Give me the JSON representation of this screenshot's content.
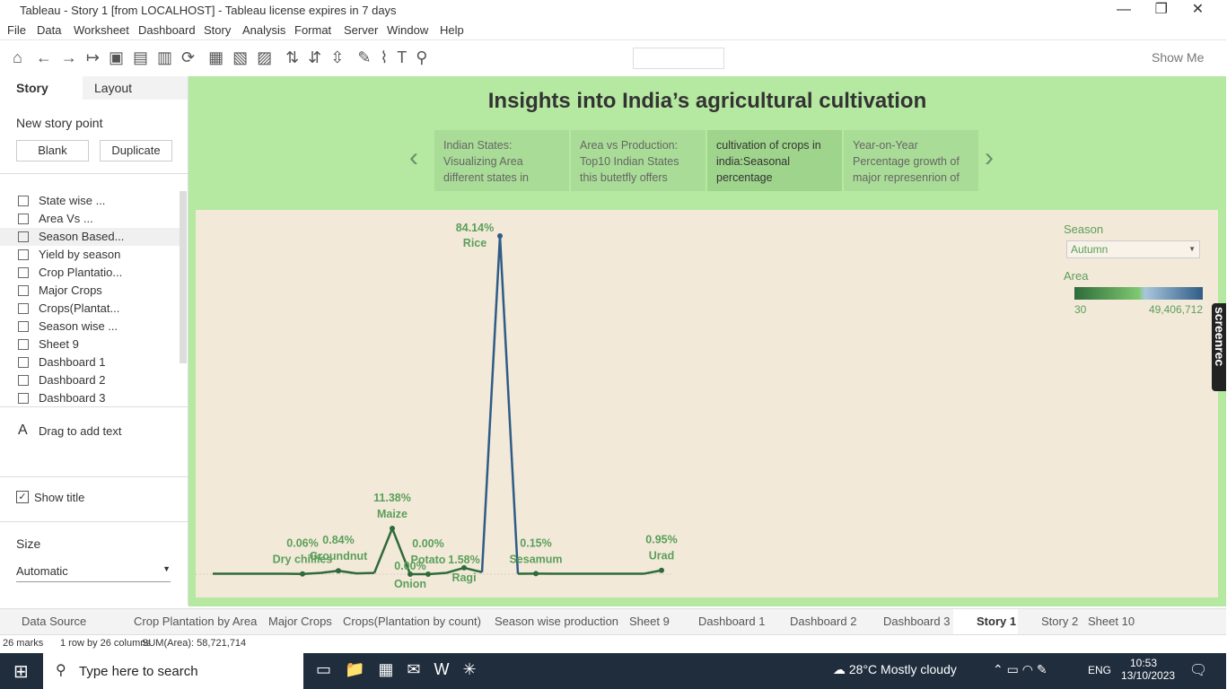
{
  "window": {
    "title": "Tableau - Story 1 [from LOCALHOST] - Tableau license expires in 7 days"
  },
  "menu": [
    "File",
    "Data",
    "Worksheet",
    "Dashboard",
    "Story",
    "Analysis",
    "Format",
    "Server",
    "Window",
    "Help"
  ],
  "toolbar": {
    "show_me": "Show Me"
  },
  "sidebar": {
    "tabs": [
      "Story",
      "Layout"
    ],
    "new_story_point": "New story point",
    "buttons": [
      "Blank",
      "Duplicate"
    ],
    "sheets": [
      "State wise ...",
      "Area Vs ...",
      "Season Based...",
      "Yield by season",
      "Crop Plantatio...",
      "Major Crops",
      "Crops(Plantat...",
      "Season wise ...",
      "Sheet 9",
      "Dashboard 1",
      "Dashboard 2",
      "Dashboard 3"
    ],
    "drag_text": "Drag to add text",
    "show_title": "Show title",
    "size_label": "Size",
    "size_value": "Automatic"
  },
  "story": {
    "title": "Insights into India’s agricultural cultivation",
    "points": [
      [
        "Indian States:",
        "Visualizing Area",
        "different states in"
      ],
      [
        "Area vs Production:",
        "Top10 Indian States",
        "this butetfly offers"
      ],
      [
        "cultivation of crops in",
        "india:Seasonal",
        "percentage"
      ],
      [
        "Year-on-Year",
        "Percentage  growth of",
        "major represenrion of"
      ]
    ]
  },
  "chart_data": {
    "type": "line",
    "categories": [
      null,
      null,
      null,
      null,
      null,
      "Dry chillies",
      null,
      "Groundnut",
      null,
      null,
      "Maize",
      "Onion",
      "Potato",
      null,
      "Ragi",
      null,
      "Rice",
      null,
      "Sesamum",
      null,
      null,
      null,
      null,
      null,
      null,
      "Urad"
    ],
    "values": [
      0.1,
      0.1,
      0.1,
      0.1,
      0.1,
      0.06,
      0.3,
      0.84,
      0.2,
      0.3,
      11.38,
      0.0,
      0.0,
      0.3,
      1.58,
      0.5,
      84.14,
      0.1,
      0.15,
      0.1,
      0.1,
      0.1,
      0.1,
      0.1,
      0.1,
      0.95
    ],
    "value_labels": [
      null,
      null,
      null,
      null,
      null,
      "0.06%",
      null,
      "0.84%",
      null,
      null,
      "11.38%",
      "0.00%",
      "0.00%",
      null,
      "1.58%",
      null,
      "84.14%",
      null,
      "0.15%",
      null,
      null,
      null,
      null,
      null,
      null,
      "0.95%"
    ],
    "color": "#2e6b3a",
    "highlight_color": "#2f5c86",
    "label_color": "#5a9f5a"
  },
  "legend": {
    "season_label": "Season",
    "season_value": "Autumn",
    "area_label": "Area",
    "area_min": "30",
    "area_max": "49,406,712"
  },
  "watermark": "screenrec",
  "tabs": [
    "Data Source",
    "Crop Plantation by Area",
    "Major Crops",
    "Crops(Plantation by count)",
    "Season wise production",
    "Sheet 9",
    "Dashboard 1",
    "Dashboard 2",
    "Dashboard 3",
    "Story 1",
    "Story 2",
    "Sheet 10"
  ],
  "status": [
    "26 marks",
    "1 row by 26 columns",
    "SUM(Area): 58,721,714"
  ],
  "taskbar": {
    "search": "Type here to search",
    "weather": "28°C Mostly cloudy",
    "lang": "ENG",
    "time": "10:53",
    "date": "13/10/2023"
  }
}
